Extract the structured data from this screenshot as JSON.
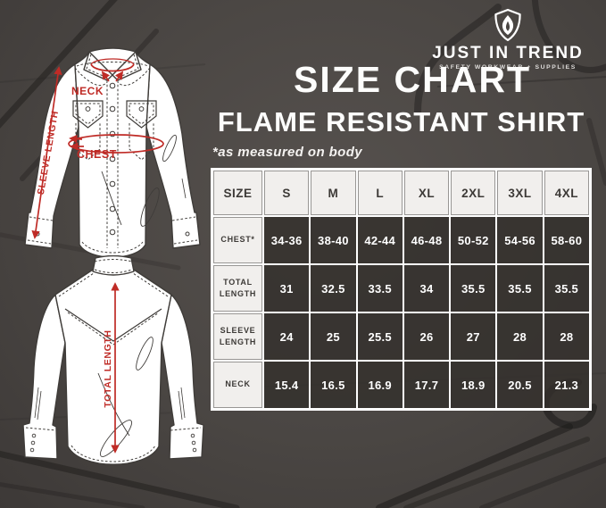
{
  "logo": {
    "brand": "JUST IN TREND",
    "tagline": "SAFETY WORKWEAR + SUPPLIES"
  },
  "header": {
    "title": "SIZE CHART",
    "subtitle": "FLAME RESISTANT SHIRT",
    "note": "*as measured on body"
  },
  "diagram": {
    "neck_label": "NECK",
    "chest_label": "CHEST",
    "sleeve_label": "SLEEVE LENGTH",
    "total_label": "TOTAL LENGTH"
  },
  "table": {
    "columns": [
      "SIZE",
      "S",
      "M",
      "L",
      "XL",
      "2XL",
      "3XL",
      "4XL"
    ],
    "rows": [
      {
        "label": "CHEST*",
        "values": [
          "34-36",
          "38-40",
          "42-44",
          "46-48",
          "50-52",
          "54-56",
          "58-60"
        ]
      },
      {
        "label": "TOTAL LENGTH",
        "values": [
          "31",
          "32.5",
          "33.5",
          "34",
          "35.5",
          "35.5",
          "35.5"
        ]
      },
      {
        "label": "SLEEVE LENGTH",
        "values": [
          "24",
          "25",
          "25.5",
          "26",
          "27",
          "28",
          "28"
        ]
      },
      {
        "label": "NECK",
        "values": [
          "15.4",
          "16.5",
          "16.9",
          "17.7",
          "18.9",
          "20.5",
          "21.3"
        ]
      }
    ]
  },
  "colors": {
    "accent_red": "#bf2b26",
    "background": "#4a4643",
    "table_light": "#f1efed",
    "table_dark": "#36322f"
  }
}
